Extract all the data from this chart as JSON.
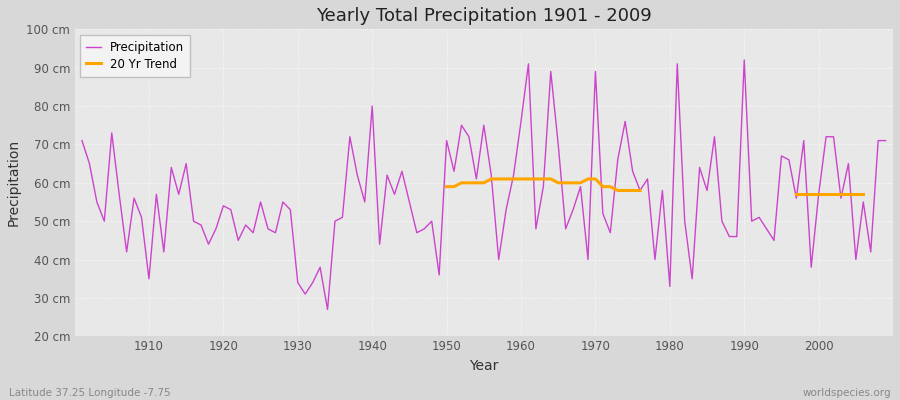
{
  "title": "Yearly Total Precipitation 1901 - 2009",
  "xlabel": "Year",
  "ylabel": "Precipitation",
  "subtitle_left": "Latitude 37.25 Longitude -7.75",
  "subtitle_right": "worldspecies.org",
  "ylim": [
    20,
    100
  ],
  "ytick_labels": [
    "20 cm",
    "30 cm",
    "40 cm",
    "50 cm",
    "60 cm",
    "70 cm",
    "80 cm",
    "90 cm",
    "100 cm"
  ],
  "ytick_values": [
    20,
    30,
    40,
    50,
    60,
    70,
    80,
    90,
    100
  ],
  "years": [
    1901,
    1902,
    1903,
    1904,
    1905,
    1906,
    1907,
    1908,
    1909,
    1910,
    1911,
    1912,
    1913,
    1914,
    1915,
    1916,
    1917,
    1918,
    1919,
    1920,
    1921,
    1922,
    1923,
    1924,
    1925,
    1926,
    1927,
    1928,
    1929,
    1930,
    1931,
    1932,
    1933,
    1934,
    1935,
    1936,
    1937,
    1938,
    1939,
    1940,
    1941,
    1942,
    1943,
    1944,
    1945,
    1946,
    1947,
    1948,
    1949,
    1950,
    1951,
    1952,
    1953,
    1954,
    1955,
    1956,
    1957,
    1958,
    1959,
    1960,
    1961,
    1962,
    1963,
    1964,
    1965,
    1966,
    1967,
    1968,
    1969,
    1970,
    1971,
    1972,
    1973,
    1974,
    1975,
    1976,
    1977,
    1978,
    1979,
    1980,
    1981,
    1982,
    1983,
    1984,
    1985,
    1986,
    1987,
    1988,
    1989,
    1990,
    1991,
    1992,
    1993,
    1994,
    1995,
    1996,
    1997,
    1998,
    1999,
    2000,
    2001,
    2002,
    2003,
    2004,
    2005,
    2006,
    2007,
    2008,
    2009
  ],
  "precip": [
    71,
    65,
    55,
    50,
    73,
    57,
    42,
    56,
    51,
    35,
    57,
    42,
    64,
    57,
    65,
    50,
    49,
    44,
    48,
    54,
    53,
    45,
    49,
    47,
    55,
    48,
    47,
    55,
    53,
    34,
    31,
    34,
    38,
    27,
    50,
    51,
    72,
    62,
    55,
    80,
    44,
    62,
    57,
    63,
    55,
    47,
    48,
    50,
    36,
    71,
    63,
    75,
    72,
    61,
    75,
    62,
    40,
    53,
    62,
    76,
    91,
    48,
    59,
    89,
    70,
    48,
    53,
    59,
    40,
    89,
    52,
    47,
    66,
    76,
    63,
    58,
    61,
    40,
    58,
    33,
    91,
    50,
    35,
    64,
    58,
    72,
    50,
    46,
    46,
    92,
    50,
    51,
    48,
    45,
    67,
    66,
    56,
    71,
    38,
    57,
    72,
    72,
    56,
    65,
    40,
    55,
    42,
    71,
    71
  ],
  "trend_seg1_years": [
    1950,
    1951,
    1952,
    1953,
    1954,
    1955,
    1956,
    1957,
    1958,
    1959,
    1960,
    1961,
    1962,
    1963,
    1964,
    1965,
    1966,
    1967,
    1968,
    1969,
    1970,
    1971,
    1972,
    1973,
    1974,
    1975,
    1976
  ],
  "trend_seg1_vals": [
    59,
    59,
    60,
    60,
    60,
    60,
    61,
    61,
    61,
    61,
    61,
    61,
    61,
    61,
    61,
    60,
    60,
    60,
    60,
    61,
    61,
    59,
    59,
    58,
    58,
    58,
    58
  ],
  "trend_seg2_years": [
    1997,
    1998,
    1999,
    2000,
    2001,
    2002,
    2003,
    2004,
    2005,
    2006
  ],
  "trend_seg2_vals": [
    57,
    57,
    57,
    57,
    57,
    57,
    57,
    57,
    57,
    57
  ],
  "precip_color": "#cc44cc",
  "trend_color": "#ffa500",
  "fig_bg_color": "#d8d8d8",
  "plot_bg_color": "#e8e8e8",
  "grid_color": "#ffffff",
  "tick_label_color": "#555555",
  "axis_label_color": "#333333",
  "footnote_color": "#888888"
}
